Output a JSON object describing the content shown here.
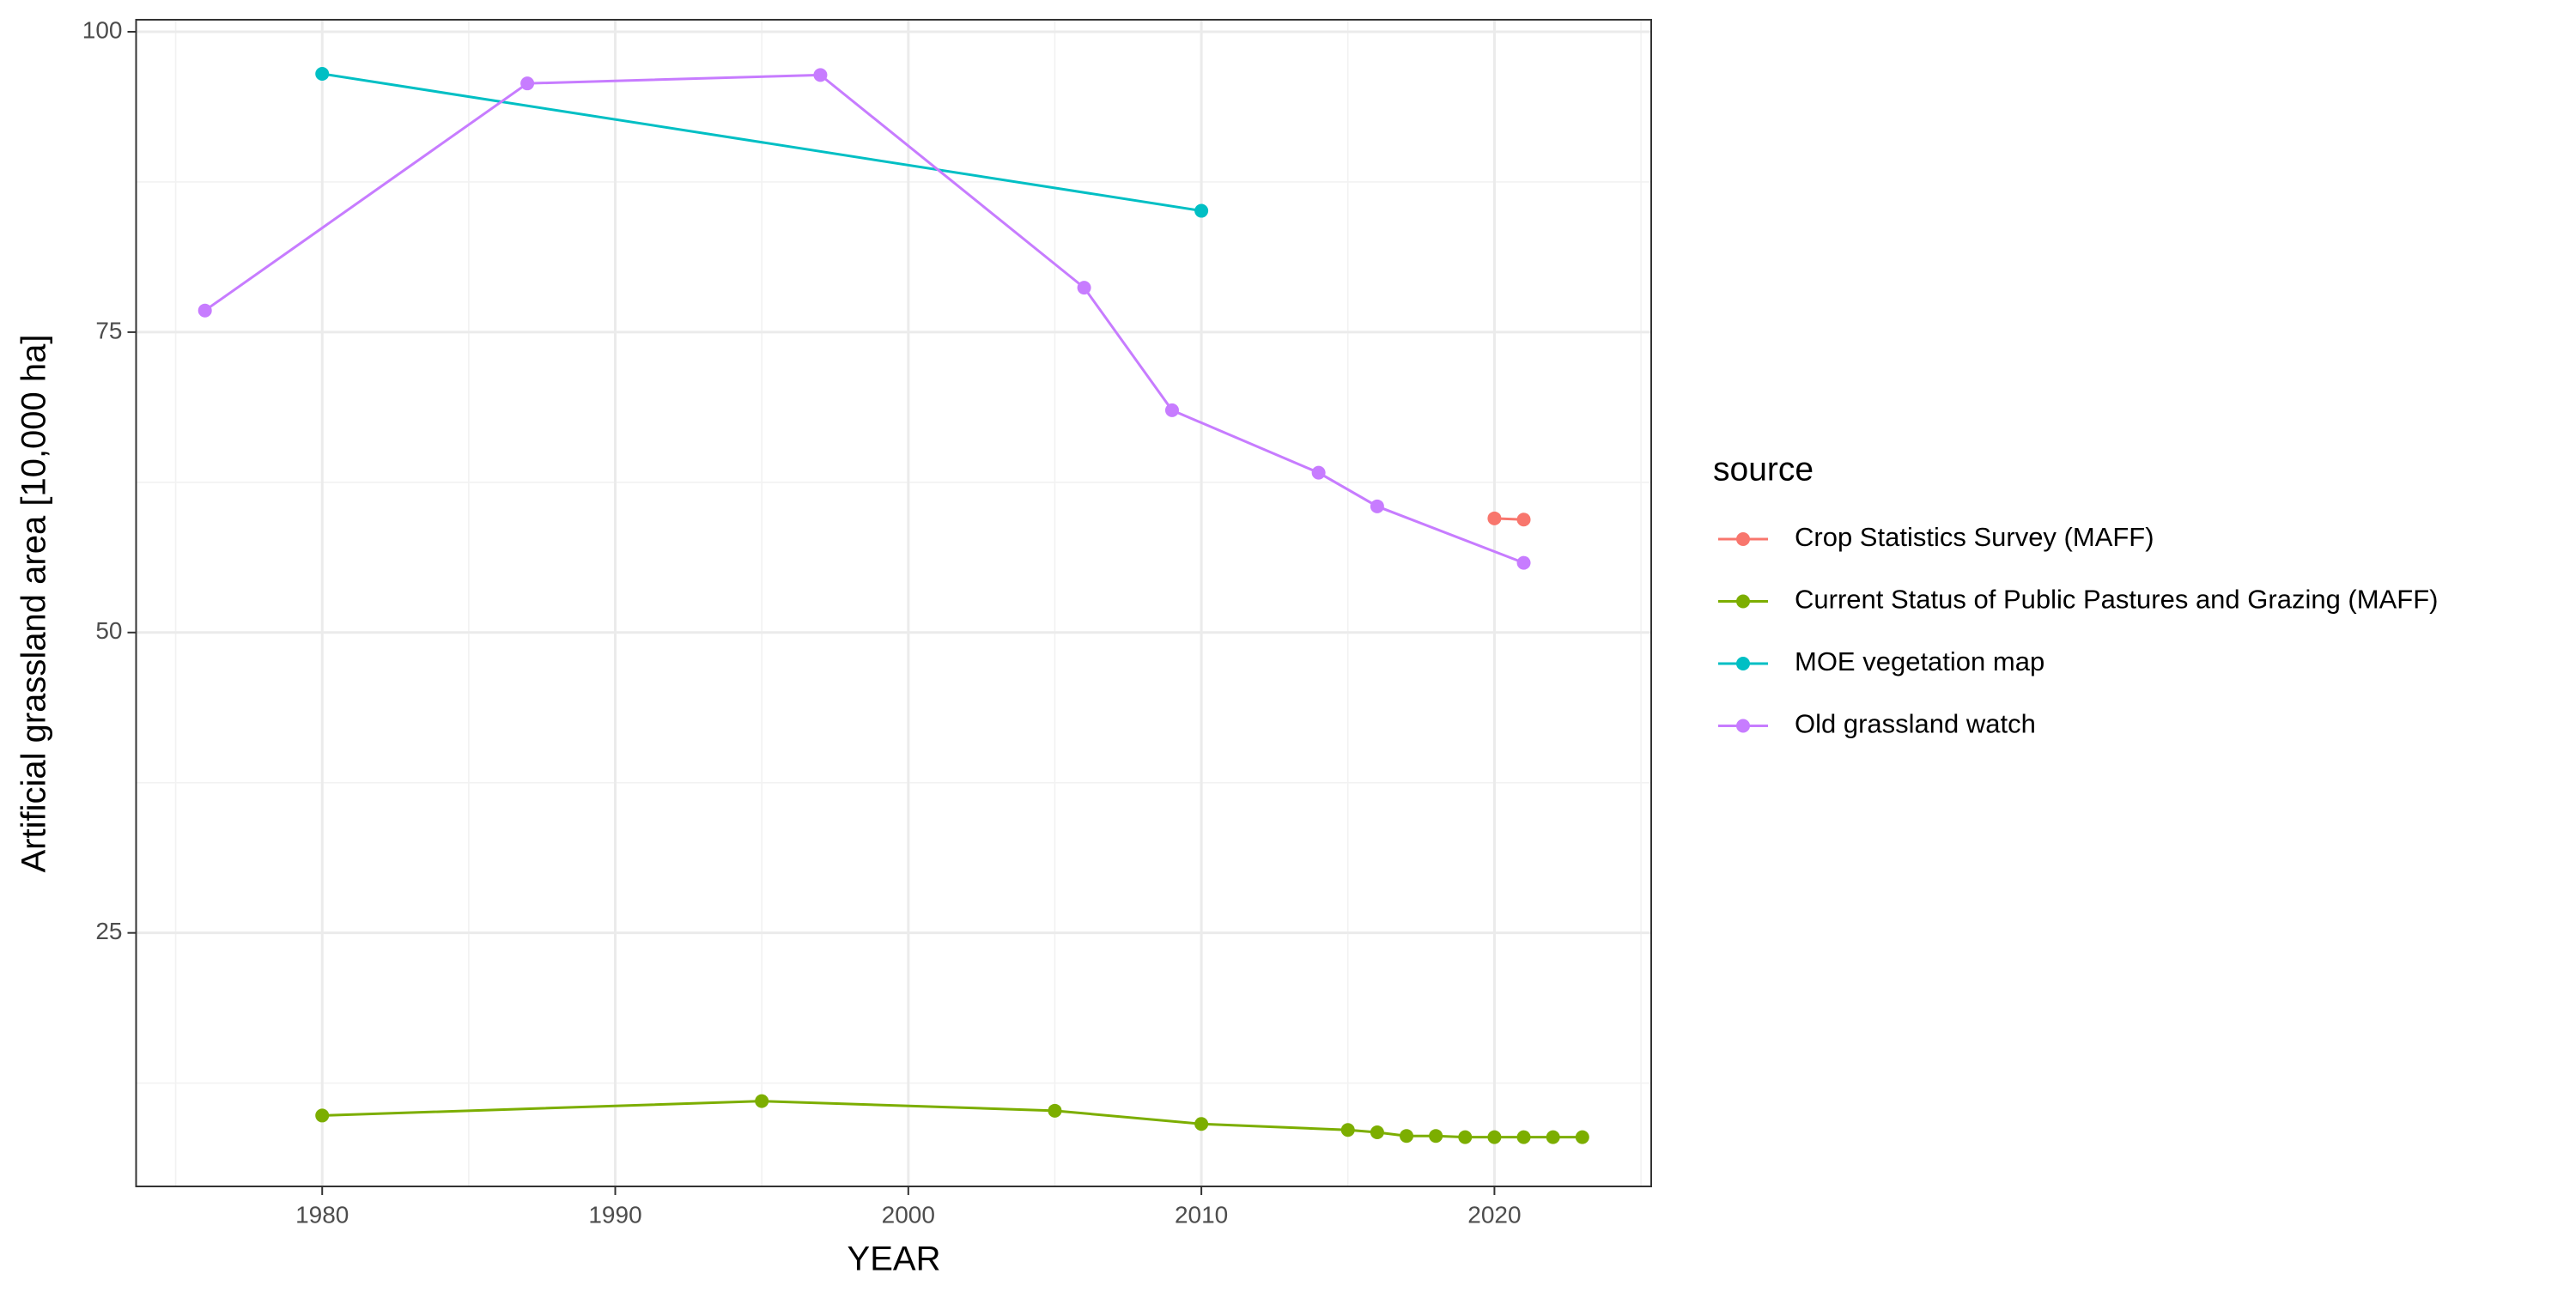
{
  "chart_data": {
    "type": "line",
    "x_label": "YEAR",
    "y_label": "Artificial grassland area [10,000 ha]",
    "legend_title": "source",
    "legend_position": "right",
    "grid": true,
    "minor_grid": true,
    "xlim": [
      1973.65,
      2025.35
    ],
    "xticks": [
      1980,
      1990,
      2000,
      2010,
      2020
    ],
    "ylim": [
      3.9,
      101.0
    ],
    "yticks": [
      25,
      50,
      75,
      100
    ],
    "series": [
      {
        "name": "Crop Statistics Survey (MAFF)",
        "color": "#F8766D",
        "x": [
          2020,
          2021
        ],
        "values": [
          59.5,
          59.4
        ]
      },
      {
        "name": "Current Status of Public Pastures and Grazing (MAFF)",
        "color": "#7CAE00",
        "x": [
          1980,
          1995,
          2005,
          2010,
          2015,
          2016,
          2017,
          2018,
          2019,
          2020,
          2021,
          2022,
          2023
        ],
        "values": [
          9.8,
          11.0,
          10.2,
          9.1,
          8.6,
          8.4,
          8.1,
          8.1,
          8.0,
          8.0,
          8.0,
          8.0,
          8.0
        ]
      },
      {
        "name": "MOE vegetation map",
        "color": "#00BFC4",
        "x": [
          1980,
          2010
        ],
        "values": [
          96.5,
          85.1
        ]
      },
      {
        "name": "Old grassland watch",
        "color": "#C77CFF",
        "x": [
          1976,
          1987,
          1997,
          2006,
          2009,
          2014,
          2016,
          2021
        ],
        "values": [
          76.8,
          95.7,
          96.4,
          78.7,
          68.5,
          63.3,
          60.5,
          55.8
        ]
      }
    ]
  }
}
